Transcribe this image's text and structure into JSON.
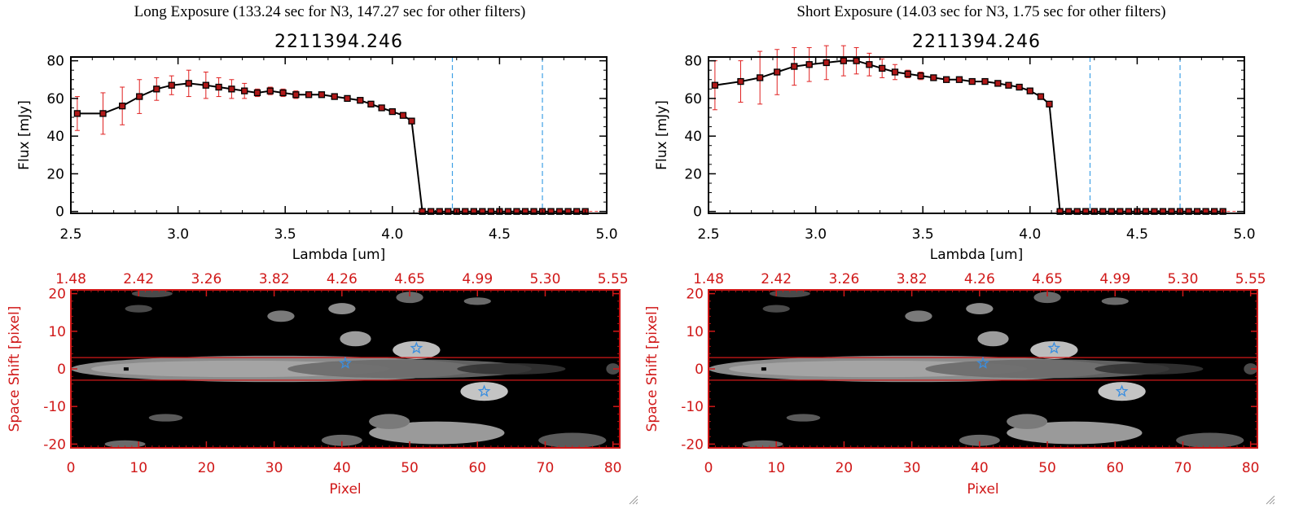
{
  "panels": [
    {
      "header": "Long Exposure (133.24 sec for N3, 147.27 sec for other filters)",
      "spectrum": {
        "title": "2211394.246",
        "xlabel": "Lambda [um]",
        "ylabel": "Flux [mJy]",
        "xlim": [
          2.5,
          5.0
        ],
        "ylim": [
          -1,
          82
        ],
        "xticks": [
          "2.5",
          "3.0",
          "3.5",
          "4.0",
          "4.5",
          "5.0"
        ],
        "yticks": [
          "0",
          "20",
          "40",
          "60",
          "80"
        ],
        "vlines": [
          4.28,
          4.7
        ],
        "x": [
          2.53,
          2.65,
          2.74,
          2.82,
          2.9,
          2.97,
          3.05,
          3.13,
          3.19,
          3.25,
          3.31,
          3.37,
          3.43,
          3.49,
          3.55,
          3.61,
          3.67,
          3.73,
          3.79,
          3.85,
          3.9,
          3.95,
          4.0,
          4.05,
          4.09,
          4.14,
          4.18,
          4.22,
          4.26,
          4.3,
          4.34,
          4.38,
          4.42,
          4.46,
          4.5,
          4.54,
          4.58,
          4.62,
          4.66,
          4.7,
          4.74,
          4.78,
          4.82,
          4.86,
          4.9
        ],
        "y": [
          52,
          52,
          56,
          61,
          65,
          67,
          68,
          67,
          66,
          65,
          64,
          63,
          64,
          63,
          62,
          62,
          62,
          61,
          60,
          59,
          57,
          55,
          53,
          51,
          48,
          0,
          0,
          0,
          0,
          0,
          0,
          0,
          0,
          0,
          0,
          0,
          0,
          0,
          0,
          0,
          0,
          0,
          0,
          0,
          0
        ],
        "err": [
          9,
          11,
          10,
          9,
          6,
          5,
          7,
          7,
          5,
          5,
          4,
          2,
          2,
          2,
          2,
          1,
          1,
          1,
          1,
          1,
          1,
          1,
          1,
          1,
          1,
          0,
          0,
          0,
          0,
          0,
          0,
          0,
          0,
          0,
          0,
          0,
          0,
          0,
          0,
          0,
          0,
          0,
          0,
          0,
          0
        ]
      },
      "image": {
        "xlabel": "Pixel",
        "ylabel": "Space Shift [pixel]",
        "xticks": [
          "0",
          "10",
          "20",
          "30",
          "40",
          "50",
          "60",
          "70",
          "80"
        ],
        "yticks": [
          "20",
          "10",
          "0",
          "-10",
          "-20"
        ],
        "top_ticks": [
          "1.48",
          "2.42",
          "3.26",
          "3.82",
          "4.26",
          "4.65",
          "4.99",
          "5.30",
          "5.55"
        ],
        "hlines": [
          3,
          -3
        ],
        "stars": [
          [
            40.5,
            1.5
          ],
          [
            51,
            5.5
          ],
          [
            61,
            -6
          ]
        ]
      }
    },
    {
      "header": "Short Exposure (14.03 sec for N3, 1.75 sec for other filters)",
      "spectrum": {
        "title": "2211394.246",
        "xlabel": "Lambda [um]",
        "ylabel": "Flux [mJy]",
        "xlim": [
          2.5,
          5.0
        ],
        "ylim": [
          -1,
          82
        ],
        "xticks": [
          "2.5",
          "3.0",
          "3.5",
          "4.0",
          "4.5",
          "5.0"
        ],
        "yticks": [
          "0",
          "20",
          "40",
          "60",
          "80"
        ],
        "vlines": [
          4.28,
          4.7
        ],
        "x": [
          2.53,
          2.65,
          2.74,
          2.82,
          2.9,
          2.97,
          3.05,
          3.13,
          3.19,
          3.25,
          3.31,
          3.37,
          3.43,
          3.49,
          3.55,
          3.61,
          3.67,
          3.73,
          3.79,
          3.85,
          3.9,
          3.95,
          4.0,
          4.05,
          4.09,
          4.14,
          4.18,
          4.22,
          4.26,
          4.3,
          4.34,
          4.38,
          4.42,
          4.46,
          4.5,
          4.54,
          4.58,
          4.62,
          4.66,
          4.7,
          4.74,
          4.78,
          4.82,
          4.86,
          4.9
        ],
        "y": [
          67,
          69,
          71,
          74,
          77,
          78,
          79,
          80,
          80,
          78,
          76,
          74,
          73,
          72,
          71,
          70,
          70,
          69,
          69,
          68,
          67,
          66,
          64,
          61,
          57,
          0,
          0,
          0,
          0,
          0,
          0,
          0,
          0,
          0,
          0,
          0,
          0,
          0,
          0,
          0,
          0,
          0,
          0,
          0,
          0
        ],
        "err": [
          13,
          11,
          14,
          12,
          10,
          9,
          9,
          8,
          7,
          6,
          5,
          4,
          2,
          2,
          1,
          1,
          1,
          1,
          1,
          1,
          1,
          1,
          1,
          1,
          1,
          0,
          0,
          0,
          0,
          0,
          0,
          0,
          0,
          0,
          0,
          0,
          0,
          0,
          0,
          0,
          0,
          0,
          0,
          0,
          0
        ]
      },
      "image": {
        "xlabel": "Pixel",
        "ylabel": "Space Shift [pixel]",
        "xticks": [
          "0",
          "10",
          "20",
          "30",
          "40",
          "50",
          "60",
          "70",
          "80"
        ],
        "yticks": [
          "20",
          "10",
          "0",
          "-10",
          "-20"
        ],
        "top_ticks": [
          "1.48",
          "2.42",
          "3.26",
          "3.82",
          "4.26",
          "4.65",
          "4.99",
          "5.30",
          "5.55"
        ],
        "hlines": [
          3,
          -3
        ],
        "stars": [
          [
            40.5,
            1.5
          ],
          [
            51,
            5.5
          ],
          [
            61,
            -6
          ]
        ]
      }
    }
  ],
  "colors": {
    "axis": "#000000",
    "line": "#000000",
    "marker": "#b01818",
    "errorbar": "#e02020",
    "vline": "#3fa0e6",
    "zero_line": "#e03030",
    "image_frame": "#d01818",
    "image_label": "#d01818",
    "star": "#3a8ee0"
  },
  "chart_data": [
    {
      "type": "line",
      "title": "2211394.246",
      "xlabel": "Lambda [um]",
      "ylabel": "Flux [mJy]",
      "xlim": [
        2.5,
        5.0
      ],
      "ylim": [
        -1,
        82
      ],
      "series": [
        {
          "x": [
            2.53,
            2.65,
            2.74,
            2.82,
            2.9,
            2.97,
            3.05,
            3.13,
            3.19,
            3.25,
            3.31,
            3.37,
            3.43,
            3.49,
            3.55,
            3.61,
            3.67,
            3.73,
            3.79,
            3.85,
            3.9,
            3.95,
            4.0,
            4.05,
            4.09,
            4.14
          ],
          "values": [
            52,
            52,
            56,
            61,
            65,
            67,
            68,
            67,
            66,
            65,
            64,
            63,
            64,
            63,
            62,
            62,
            62,
            61,
            60,
            59,
            57,
            55,
            53,
            51,
            48,
            0
          ]
        }
      ]
    },
    {
      "type": "heatmap",
      "xlabel": "Pixel",
      "ylabel": "Space Shift [pixel]",
      "xlim": [
        0,
        81
      ],
      "ylim": [
        -21,
        21
      ]
    },
    {
      "type": "line",
      "title": "2211394.246",
      "xlabel": "Lambda [um]",
      "ylabel": "Flux [mJy]",
      "xlim": [
        2.5,
        5.0
      ],
      "ylim": [
        -1,
        82
      ],
      "series": [
        {
          "x": [
            2.53,
            2.65,
            2.74,
            2.82,
            2.9,
            2.97,
            3.05,
            3.13,
            3.19,
            3.25,
            3.31,
            3.37,
            3.43,
            3.49,
            3.55,
            3.61,
            3.67,
            3.73,
            3.79,
            3.85,
            3.9,
            3.95,
            4.0,
            4.05,
            4.09,
            4.14
          ],
          "values": [
            67,
            69,
            71,
            74,
            77,
            78,
            79,
            80,
            80,
            78,
            76,
            74,
            73,
            72,
            71,
            70,
            70,
            69,
            69,
            68,
            67,
            66,
            64,
            61,
            57,
            0
          ]
        }
      ]
    },
    {
      "type": "heatmap",
      "xlabel": "Pixel",
      "ylabel": "Space Shift [pixel]",
      "xlim": [
        0,
        81
      ],
      "ylim": [
        -21,
        21
      ]
    }
  ]
}
